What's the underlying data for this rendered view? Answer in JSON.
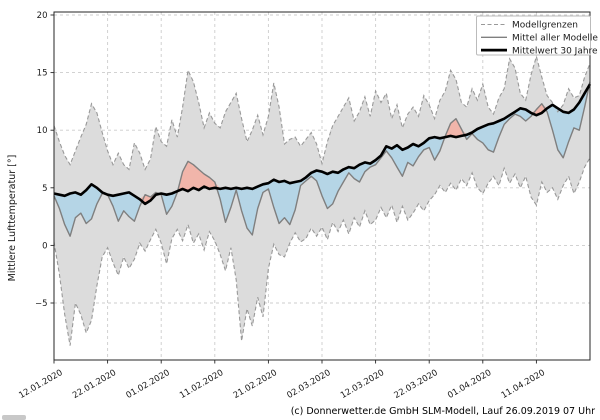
{
  "page": {
    "background": "#ffffff"
  },
  "footer": {
    "credit": "(c) Donnerwetter.de GmbH SLM-Modell, Lauf 26.09.2019 07 Uhr"
  },
  "chart_data": {
    "type": "line",
    "title": "",
    "xlabel": "",
    "ylabel": "Mittlere Lufttemperatur [°]",
    "ylim": [
      -9.95,
      20.26
    ],
    "ytick_values": [
      20,
      15,
      10,
      5,
      0,
      -5
    ],
    "ytick_labels": [
      "20",
      "15",
      "10",
      "5",
      "0",
      "−5"
    ],
    "x_tick_labels": [
      "12.01.2020",
      "22.01.2020",
      "01.02.2020",
      "11.02.2020",
      "21.02.2020",
      "02.03.2020",
      "12.03.2020",
      "22.03.2020",
      "01.04.2020",
      "11.04.2020"
    ],
    "x_tick_positions_days": [
      0,
      10,
      20,
      30,
      40,
      50,
      60,
      70,
      80,
      90
    ],
    "x_total_days": 100,
    "grid": "dashed",
    "legend": {
      "position": "top-right",
      "entries": [
        {
          "label": "Modellgrenzen",
          "style": "dashed-gray"
        },
        {
          "label": "Mittel aller Modelle",
          "style": "solid-gray"
        },
        {
          "label": "Mittelwert 30 Jahre",
          "style": "solid-black-thick"
        }
      ]
    },
    "colors": {
      "band": "#dcdcdc",
      "band_edge": "#999999",
      "model_mean": "#7f7f7f",
      "climate_mean": "#000000",
      "below_fill": "#b5d5e6",
      "above_fill": "#f1b5aa",
      "grid": "#cccccc",
      "spine": "#262626"
    },
    "series": [
      {
        "name": "Modellgrenzen max",
        "role": "upper",
        "values": [
          10.4,
          9.0,
          7.8,
          7.0,
          8.2,
          9.4,
          10.5,
          12.3,
          11.5,
          9.8,
          8.2,
          7.0,
          8.0,
          7.0,
          6.6,
          8.9,
          8.0,
          6.6,
          7.5,
          10.3,
          9.0,
          8.6,
          10.9,
          9.4,
          12.0,
          15.2,
          14.2,
          12.4,
          10.2,
          11.5,
          10.6,
          10.2,
          11.6,
          12.4,
          13.2,
          11.0,
          9.0,
          10.0,
          11.3,
          9.6,
          11.2,
          14.1,
          12.0,
          8.8,
          9.2,
          9.4,
          8.6,
          9.2,
          9.8,
          8.8,
          7.1,
          9.0,
          10.4,
          11.2,
          12.0,
          12.8,
          10.8,
          11.6,
          12.9,
          11.2,
          13.4,
          12.4,
          13.2,
          11.0,
          12.2,
          10.2,
          11.4,
          12.0,
          11.2,
          13.0,
          12.2,
          11.0,
          12.6,
          13.4,
          15.2,
          14.4,
          12.4,
          12.0,
          13.6,
          12.6,
          14.0,
          12.0,
          11.4,
          12.8,
          13.6,
          16.2,
          15.4,
          13.2,
          12.6,
          14.8,
          16.4,
          14.6,
          13.0,
          12.4,
          11.6,
          12.2,
          13.6,
          12.8,
          13.0,
          14.6,
          15.8
        ]
      },
      {
        "name": "Modellgrenzen min",
        "role": "lower",
        "values": [
          0.3,
          -2.5,
          -6.0,
          -8.7,
          -5.0,
          -6.0,
          -7.6,
          -6.5,
          -3.5,
          -1.0,
          -0.2,
          -1.5,
          -2.6,
          -1.0,
          -2.0,
          -1.2,
          0.2,
          -0.5,
          0.5,
          1.4,
          0.2,
          -1.6,
          0.6,
          1.4,
          0.4,
          1.8,
          0.2,
          1.0,
          -0.4,
          1.2,
          0.4,
          -0.8,
          -2.2,
          -0.2,
          -3.0,
          -8.3,
          -5.5,
          -7.0,
          -4.5,
          -6.2,
          -2.0,
          0.1,
          -0.8,
          -1.0,
          0.2,
          1.1,
          0.3,
          0.6,
          1.5,
          0.8,
          1.6,
          0.5,
          2.0,
          1.2,
          2.2,
          1.0,
          2.4,
          1.6,
          3.0,
          1.8,
          2.2,
          3.3,
          2.4,
          3.5,
          2.0,
          3.4,
          2.2,
          2.8,
          3.6,
          3.0,
          3.9,
          4.4,
          5.2,
          4.6,
          5.4,
          4.8,
          5.8,
          5.2,
          6.3,
          5.0,
          4.5,
          5.4,
          6.0,
          5.2,
          6.7,
          5.4,
          6.2,
          5.0,
          6.0,
          4.2,
          3.5,
          5.5,
          4.6,
          5.0,
          4.0,
          5.2,
          6.0,
          4.5,
          5.5,
          6.8,
          7.6
        ]
      },
      {
        "name": "Mittel aller Modelle",
        "role": "mean",
        "values": [
          4.3,
          3.2,
          1.8,
          0.8,
          2.4,
          2.8,
          1.9,
          2.3,
          3.6,
          4.5,
          4.4,
          3.4,
          2.1,
          3.0,
          2.5,
          2.1,
          3.4,
          4.4,
          4.2,
          4.6,
          4.4,
          2.7,
          3.4,
          4.6,
          6.4,
          7.3,
          7.0,
          6.6,
          6.2,
          5.9,
          5.5,
          4.0,
          2.0,
          3.3,
          4.8,
          3.0,
          1.5,
          0.9,
          3.2,
          4.6,
          4.9,
          3.3,
          1.9,
          2.4,
          1.8,
          3.1,
          5.2,
          5.6,
          6.0,
          5.6,
          4.3,
          3.2,
          3.6,
          4.7,
          5.5,
          6.3,
          5.8,
          5.5,
          6.4,
          6.8,
          7.0,
          7.6,
          8.2,
          7.6,
          6.8,
          6.0,
          7.2,
          6.9,
          7.7,
          8.3,
          8.5,
          7.4,
          8.2,
          9.5,
          10.6,
          11.0,
          10.1,
          9.2,
          9.7,
          9.2,
          8.9,
          8.3,
          8.1,
          9.4,
          10.5,
          11.0,
          11.4,
          11.2,
          10.8,
          11.2,
          11.8,
          12.3,
          11.6,
          10.0,
          8.3,
          7.6,
          9.0,
          10.2,
          10.0,
          12.0,
          14.2
        ]
      },
      {
        "name": "Mittelwert 30 Jahre",
        "role": "climate",
        "values": [
          4.5,
          4.4,
          4.3,
          4.5,
          4.6,
          4.4,
          4.8,
          5.3,
          5.0,
          4.6,
          4.4,
          4.3,
          4.4,
          4.5,
          4.6,
          4.3,
          4.0,
          3.6,
          3.9,
          4.4,
          4.5,
          4.4,
          4.5,
          4.7,
          4.9,
          4.7,
          5.0,
          4.8,
          5.1,
          4.9,
          5.0,
          4.9,
          5.0,
          4.9,
          5.0,
          4.9,
          5.0,
          4.9,
          5.1,
          5.3,
          5.4,
          5.7,
          5.5,
          5.6,
          5.4,
          5.5,
          5.6,
          5.9,
          6.3,
          6.5,
          6.4,
          6.2,
          6.4,
          6.3,
          6.6,
          6.8,
          6.7,
          7.0,
          7.2,
          7.1,
          7.4,
          7.8,
          8.6,
          8.4,
          8.7,
          8.3,
          8.5,
          8.8,
          8.6,
          8.9,
          9.3,
          9.4,
          9.3,
          9.4,
          9.5,
          9.4,
          9.5,
          9.6,
          9.8,
          10.1,
          10.3,
          10.5,
          10.6,
          10.8,
          11.0,
          11.3,
          11.6,
          11.9,
          11.8,
          11.5,
          11.3,
          11.5,
          11.9,
          12.2,
          11.9,
          11.6,
          11.5,
          11.8,
          12.4,
          13.2,
          14.0
        ]
      }
    ]
  }
}
